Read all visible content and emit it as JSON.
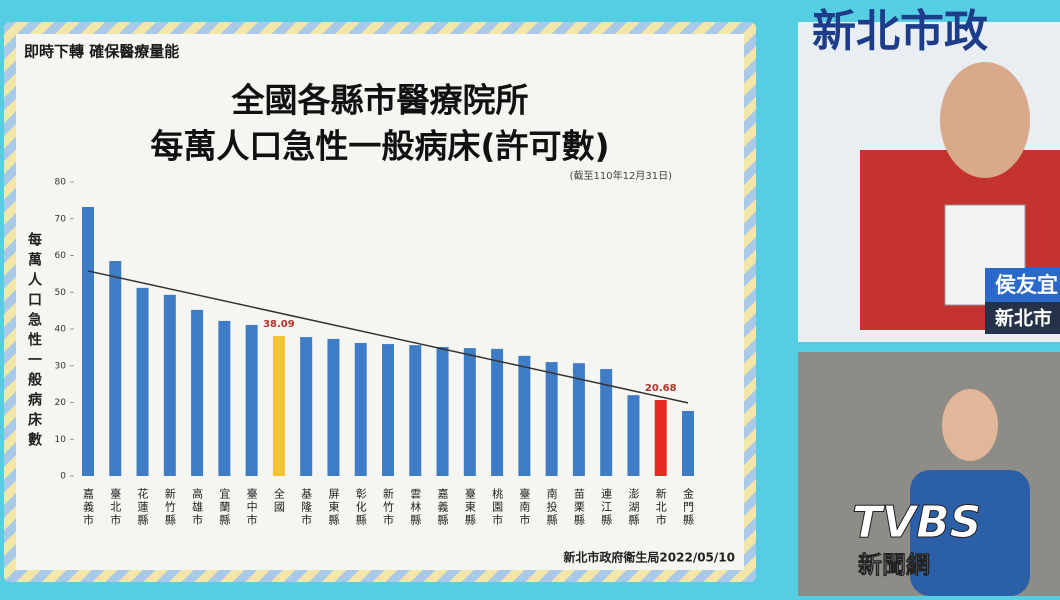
{
  "header": "即時下轉 確保醫療量能",
  "chart_data": {
    "type": "bar",
    "title_lines": [
      "全國各縣市醫療院所",
      "每萬人口急性一般病床(許可數)"
    ],
    "subtitle": "(截至110年12月31日)",
    "y_label": "每萬人口急性一般病床數",
    "categories": [
      "嘉義市",
      "臺北市",
      "花蓮縣",
      "新竹縣",
      "高雄市",
      "宜蘭縣",
      "臺中市",
      "全國",
      "基隆市",
      "屏東縣",
      "彰化縣",
      "新竹市",
      "雲林縣",
      "嘉義縣",
      "臺東縣",
      "桃園市",
      "臺南市",
      "南投縣",
      "苗栗縣",
      "連江縣",
      "澎湖縣",
      "新北市",
      "金門縣"
    ],
    "values": [
      73.2,
      58.5,
      51.2,
      49.3,
      45.2,
      42.2,
      41.1,
      38.09,
      37.8,
      37.3,
      36.2,
      35.9,
      35.6,
      35.1,
      34.8,
      34.6,
      32.7,
      31.0,
      30.7,
      29.1,
      22.0,
      20.68,
      17.7
    ],
    "value_labels": [
      null,
      null,
      null,
      null,
      null,
      null,
      null,
      "38.09",
      null,
      null,
      null,
      null,
      null,
      null,
      null,
      null,
      null,
      null,
      null,
      null,
      null,
      "20.68",
      null
    ],
    "colors": [
      "#3f7cc6",
      "#3f7cc6",
      "#3f7cc6",
      "#3f7cc6",
      "#3f7cc6",
      "#3f7cc6",
      "#3f7cc6",
      "#f3c431",
      "#3f7cc6",
      "#3f7cc6",
      "#3f7cc6",
      "#3f7cc6",
      "#3f7cc6",
      "#3f7cc6",
      "#3f7cc6",
      "#3f7cc6",
      "#3f7cc6",
      "#3f7cc6",
      "#3f7cc6",
      "#3f7cc6",
      "#3f7cc6",
      "#e42a22",
      "#3f7cc6"
    ],
    "trendline": [
      55.8,
      19.9
    ],
    "ylim": [
      0,
      80
    ],
    "yticks": [
      0,
      10,
      20,
      30,
      40,
      50,
      60,
      70,
      80
    ],
    "source": "新北市政府衛生局2022/05/10"
  },
  "overlay": {
    "speaker_name": "侯友宜",
    "speaker_title": "新北市",
    "logo": "TVBS",
    "logo_sub": "新聞網"
  }
}
